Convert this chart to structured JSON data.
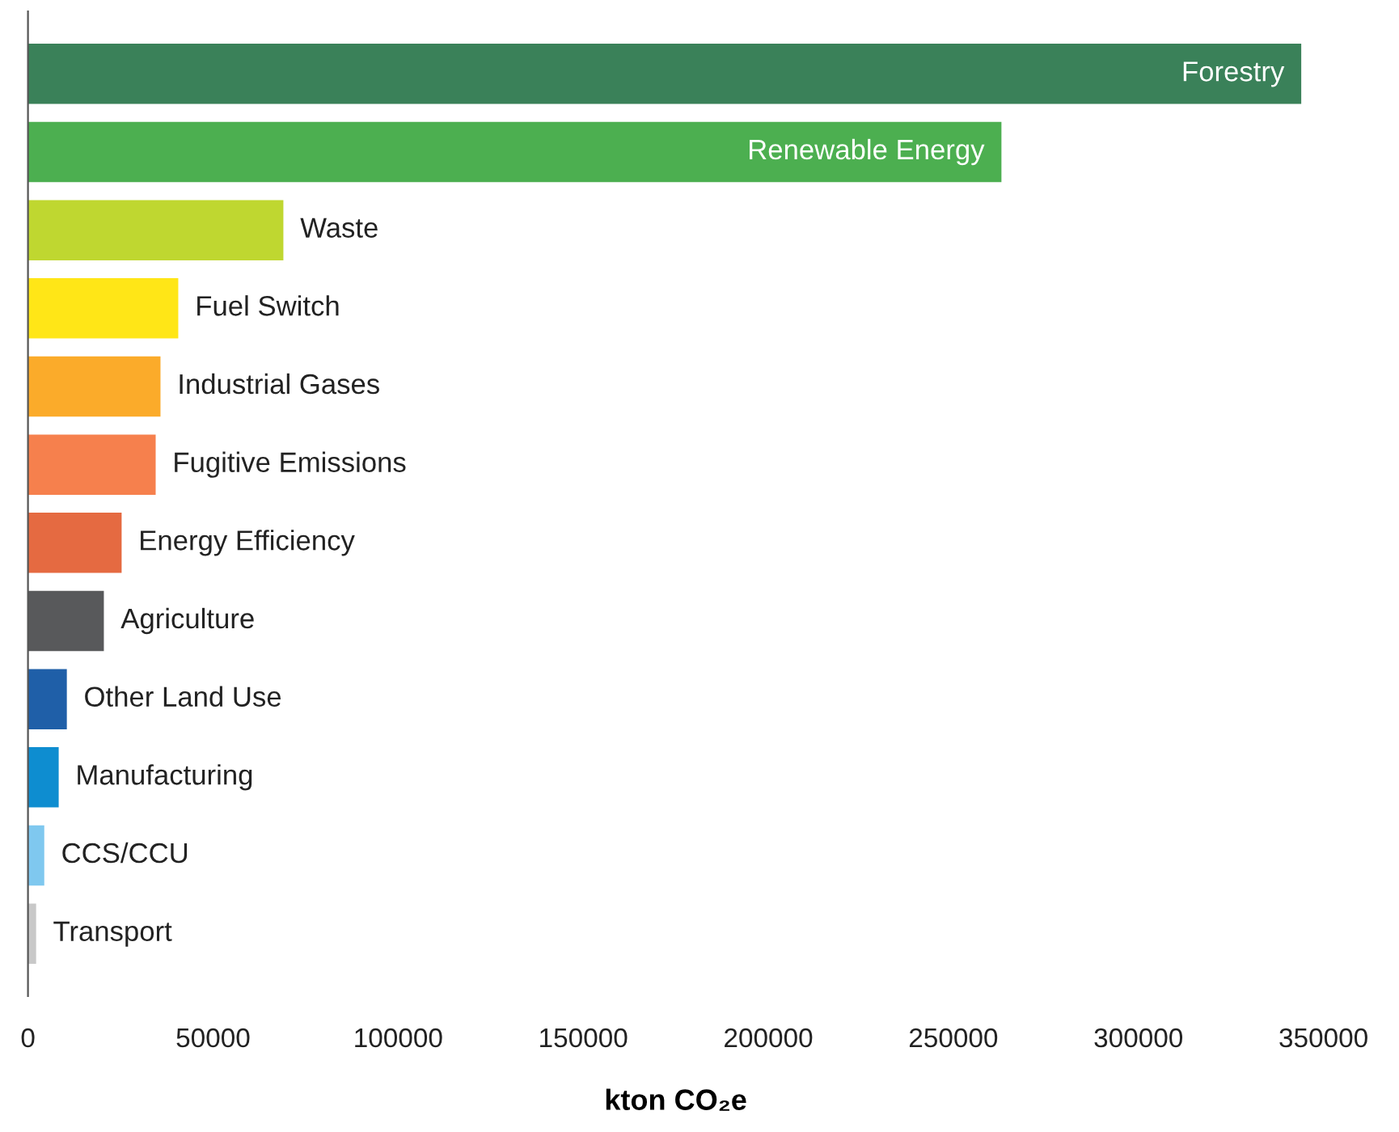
{
  "chart_data": {
    "type": "bar",
    "orientation": "horizontal",
    "xlabel": "kton CO₂e",
    "categories": [
      "Forestry",
      "Renewable Energy",
      "Waste",
      "Fuel Switch",
      "Industrial Gases",
      "Fugitive Emissions",
      "Energy Efficiency",
      "Agriculture",
      "Other Land Use",
      "Manufacturing",
      "CCS/CCU",
      "Transport"
    ],
    "values": [
      344000,
      263000,
      69000,
      40600,
      35800,
      34500,
      25300,
      20500,
      10500,
      8300,
      4400,
      2200
    ],
    "colors": [
      "#3a8159",
      "#4caf50",
      "#bfd730",
      "#ffe617",
      "#fbab2a",
      "#f6804d",
      "#e56a41",
      "#58595b",
      "#1f5fa8",
      "#0e8dd0",
      "#7fc8ef",
      "#c8c8c8"
    ],
    "xlim": [
      0,
      350000
    ],
    "xticks": [
      0,
      50000,
      100000,
      150000,
      200000,
      250000,
      300000,
      350000
    ],
    "grid": false,
    "legend": false
  }
}
